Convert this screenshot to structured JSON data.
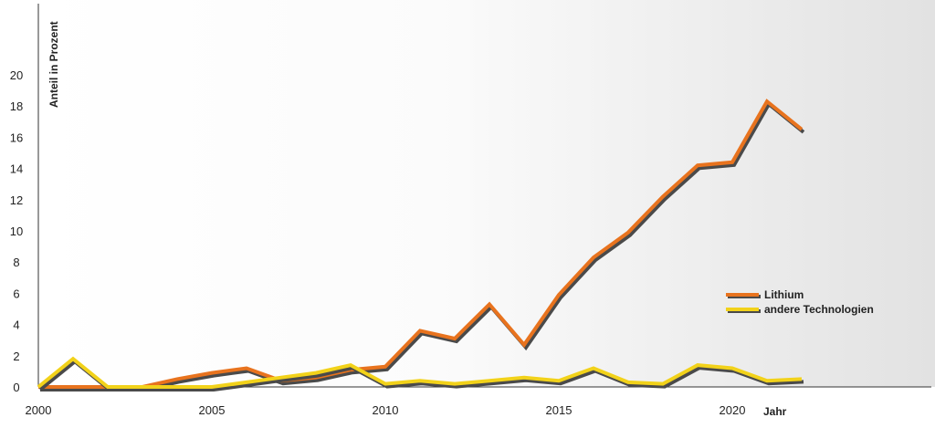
{
  "chart_data": {
    "type": "line",
    "ylabel": "Anteil in Prozent",
    "xlabel": "Jahr",
    "xlim": [
      2000,
      2025
    ],
    "ylim": [
      0,
      20
    ],
    "x_ticks": [
      "2000",
      "2005",
      "2010",
      "2015",
      "2020"
    ],
    "y_ticks": [
      "0",
      "2",
      "4",
      "6",
      "8",
      "10",
      "12",
      "14",
      "16",
      "18",
      "20"
    ],
    "legend_position": "right",
    "grid": false,
    "x": [
      2000,
      2001,
      2002,
      2003,
      2004,
      2005,
      2006,
      2007,
      2008,
      2009,
      2010,
      2011,
      2012,
      2013,
      2014,
      2015,
      2016,
      2017,
      2018,
      2019,
      2020,
      2021,
      2022
    ],
    "series": [
      {
        "name": "Lithium",
        "color": "#e8731e",
        "values": [
          0,
          0,
          0,
          0,
          0.5,
          0.9,
          1.2,
          0.4,
          0.6,
          1.1,
          1.3,
          3.6,
          3.1,
          5.3,
          2.7,
          5.9,
          8.3,
          9.9,
          12.2,
          14.2,
          14.4,
          18.3,
          16.5
        ]
      },
      {
        "name": "andere Technologien",
        "color": "#f2d21a",
        "values": [
          0,
          1.8,
          0,
          0,
          0,
          0,
          0.3,
          0.6,
          0.9,
          1.4,
          0.2,
          0.4,
          0.2,
          0.4,
          0.6,
          0.4,
          1.2,
          0.3,
          0.2,
          1.4,
          1.2,
          0.4,
          0.5
        ]
      }
    ]
  }
}
